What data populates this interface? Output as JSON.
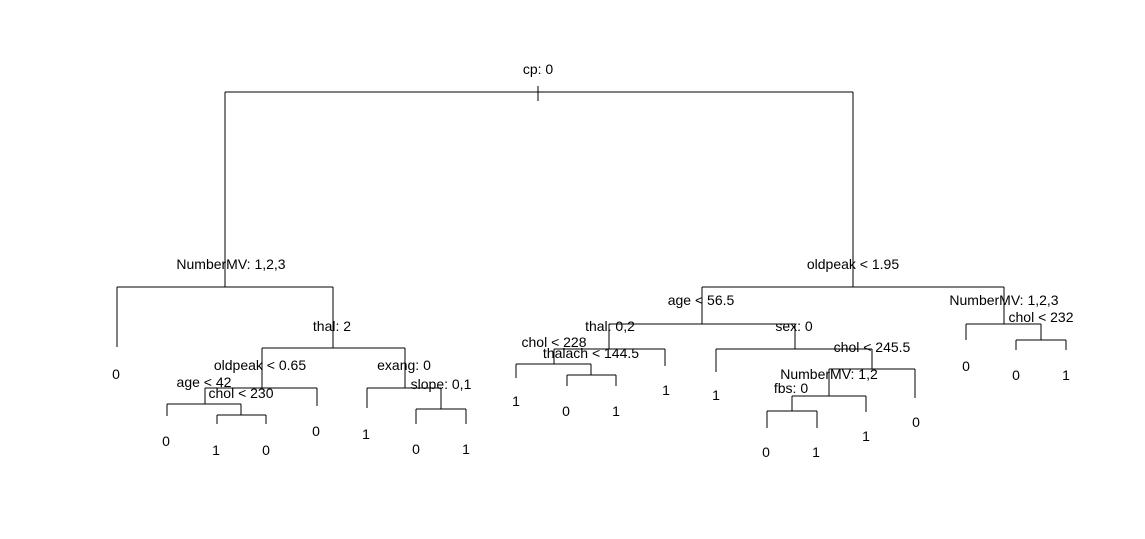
{
  "tree": {
    "splits": [
      {
        "id": "root",
        "label": "cp: 0"
      },
      {
        "id": "n1",
        "label": "NumberMV: 1,2,3"
      },
      {
        "id": "n2",
        "label": "oldpeak < 1.95"
      },
      {
        "id": "n3",
        "label": "thal: 2"
      },
      {
        "id": "n4",
        "label": "oldpeak < 0.65"
      },
      {
        "id": "n5",
        "label": "exang: 0"
      },
      {
        "id": "n6",
        "label": "age < 42"
      },
      {
        "id": "n7",
        "label": "chol < 230"
      },
      {
        "id": "n8",
        "label": "slope: 0,1"
      },
      {
        "id": "n9",
        "label": "age < 56.5"
      },
      {
        "id": "n10",
        "label": "NumberMV: 1,2,3"
      },
      {
        "id": "n11",
        "label": "thal: 0,2"
      },
      {
        "id": "n12",
        "label": "sex: 0"
      },
      {
        "id": "n13",
        "label": "chol < 232"
      },
      {
        "id": "n14",
        "label": "chol < 228"
      },
      {
        "id": "n15",
        "label": "thalach < 144.5"
      },
      {
        "id": "n16",
        "label": "chol < 245.5"
      },
      {
        "id": "n17",
        "label": "NumberMV: 1,2"
      },
      {
        "id": "n18",
        "label": "fbs: 0"
      }
    ],
    "leaves": [
      "0",
      "0",
      "1",
      "0",
      "0",
      "1",
      "0",
      "1",
      "1",
      "0",
      "1",
      "1",
      "1",
      "0",
      "1",
      "1",
      "0",
      "0",
      "0",
      "1"
    ]
  }
}
